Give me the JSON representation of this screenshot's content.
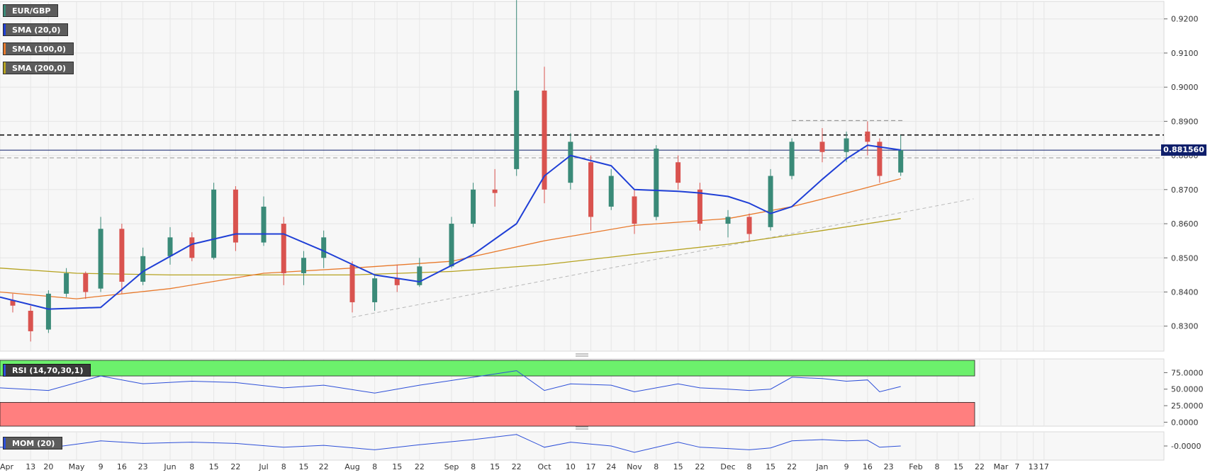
{
  "legend": {
    "symbol": "EUR/GBP",
    "sma20": "SMA (20,0)",
    "sma100": "SMA (100,0)",
    "sma200": "SMA (200,0)",
    "rsi": "RSI (14,70,30,1)",
    "mom": "MOM (20)"
  },
  "colors": {
    "up": "#3a8a78",
    "down": "#d9534f",
    "sma20": "#1f3fd6",
    "sma100": "#e8792b",
    "sma200": "#b5a21f",
    "rsi_line": "#2d4fd8",
    "rsi_overbought": "#6cf06c",
    "rsi_oversold": "#ff7f7f",
    "current_price": "#0f1f6b"
  },
  "chart_data": {
    "type": "candlestick",
    "instrument": "EUR/GBP",
    "y_range": [
      0.825,
      0.9255
    ],
    "price_ticks": [
      "0.9200",
      "0.9100",
      "0.9000",
      "0.8900",
      "0.8800",
      "0.8700",
      "0.8600",
      "0.8500",
      "0.8400",
      "0.8300"
    ],
    "current_price": "0.881560",
    "x_ticks": [
      "Apr",
      "13",
      "20",
      "May",
      "9",
      "16",
      "23",
      "Jun",
      "8",
      "15",
      "22",
      "Jul",
      "8",
      "15",
      "22",
      "Aug",
      "8",
      "15",
      "22",
      "Sep",
      "8",
      "15",
      "22",
      "Oct",
      "10",
      "17",
      "24",
      "Nov",
      "8",
      "15",
      "22",
      "Dec",
      "8",
      "15",
      "22",
      "Jan",
      "9",
      "16",
      "23",
      "Feb",
      "8",
      "15",
      "22",
      "Mar",
      "7",
      "13",
      "17"
    ],
    "horizontal_levels": [
      {
        "price": 0.886,
        "style": "dashed",
        "color": "#111111"
      },
      {
        "price": 0.8793,
        "style": "dashed",
        "color": "#aaaaaa"
      },
      {
        "price": 0.8902,
        "style": "dashed",
        "color": "#999999",
        "from": "Dec 22",
        "to": "Jan 28"
      }
    ],
    "trendline": {
      "start": {
        "date": "Aug 1",
        "price": 0.8326
      },
      "end": {
        "date": "Feb 20",
        "price": 0.8673
      }
    },
    "candles_sampled": [
      {
        "date": "Apr 6",
        "o": 0.8375,
        "h": 0.8395,
        "l": 0.834,
        "c": 0.836
      },
      {
        "date": "Apr 13",
        "o": 0.8345,
        "h": 0.836,
        "l": 0.8255,
        "c": 0.8285
      },
      {
        "date": "Apr 20",
        "o": 0.829,
        "h": 0.8405,
        "l": 0.828,
        "c": 0.8395
      },
      {
        "date": "Apr 27",
        "o": 0.8395,
        "h": 0.847,
        "l": 0.8385,
        "c": 0.8455
      },
      {
        "date": "May 4",
        "o": 0.8455,
        "h": 0.846,
        "l": 0.838,
        "c": 0.84
      },
      {
        "date": "May 9",
        "o": 0.841,
        "h": 0.862,
        "l": 0.84,
        "c": 0.8585
      },
      {
        "date": "May 16",
        "o": 0.8585,
        "h": 0.86,
        "l": 0.8395,
        "c": 0.843
      },
      {
        "date": "May 23",
        "o": 0.843,
        "h": 0.853,
        "l": 0.842,
        "c": 0.8505
      },
      {
        "date": "Jun 1",
        "o": 0.8505,
        "h": 0.859,
        "l": 0.848,
        "c": 0.856
      },
      {
        "date": "Jun 8",
        "o": 0.856,
        "h": 0.8575,
        "l": 0.849,
        "c": 0.85
      },
      {
        "date": "Jun 15",
        "o": 0.85,
        "h": 0.872,
        "l": 0.8495,
        "c": 0.87
      },
      {
        "date": "Jun 22",
        "o": 0.87,
        "h": 0.871,
        "l": 0.852,
        "c": 0.8545
      },
      {
        "date": "Jul 1",
        "o": 0.8545,
        "h": 0.868,
        "l": 0.8535,
        "c": 0.865
      },
      {
        "date": "Jul 8",
        "o": 0.86,
        "h": 0.862,
        "l": 0.842,
        "c": 0.8455
      },
      {
        "date": "Jul 15",
        "o": 0.8455,
        "h": 0.852,
        "l": 0.842,
        "c": 0.85
      },
      {
        "date": "Jul 22",
        "o": 0.85,
        "h": 0.858,
        "l": 0.847,
        "c": 0.856
      },
      {
        "date": "Aug 1",
        "o": 0.848,
        "h": 0.849,
        "l": 0.834,
        "c": 0.837
      },
      {
        "date": "Aug 8",
        "o": 0.837,
        "h": 0.845,
        "l": 0.8345,
        "c": 0.844
      },
      {
        "date": "Aug 15",
        "o": 0.844,
        "h": 0.848,
        "l": 0.84,
        "c": 0.842
      },
      {
        "date": "Aug 22",
        "o": 0.842,
        "h": 0.85,
        "l": 0.8415,
        "c": 0.8475
      },
      {
        "date": "Sep 1",
        "o": 0.8475,
        "h": 0.862,
        "l": 0.847,
        "c": 0.86
      },
      {
        "date": "Sep 8",
        "o": 0.86,
        "h": 0.872,
        "l": 0.859,
        "c": 0.87
      },
      {
        "date": "Sep 15",
        "o": 0.87,
        "h": 0.876,
        "l": 0.865,
        "c": 0.869
      },
      {
        "date": "Sep 22",
        "o": 0.876,
        "h": 0.9255,
        "l": 0.874,
        "c": 0.899
      },
      {
        "date": "Oct 1",
        "o": 0.899,
        "h": 0.906,
        "l": 0.866,
        "c": 0.87
      },
      {
        "date": "Oct 10",
        "o": 0.872,
        "h": 0.8865,
        "l": 0.87,
        "c": 0.884
      },
      {
        "date": "Oct 17",
        "o": 0.878,
        "h": 0.88,
        "l": 0.858,
        "c": 0.862
      },
      {
        "date": "Oct 24",
        "o": 0.865,
        "h": 0.876,
        "l": 0.864,
        "c": 0.874
      },
      {
        "date": "Nov 1",
        "o": 0.868,
        "h": 0.87,
        "l": 0.857,
        "c": 0.86
      },
      {
        "date": "Nov 8",
        "o": 0.862,
        "h": 0.883,
        "l": 0.861,
        "c": 0.882
      },
      {
        "date": "Nov 15",
        "o": 0.878,
        "h": 0.88,
        "l": 0.87,
        "c": 0.872
      },
      {
        "date": "Nov 22",
        "o": 0.87,
        "h": 0.872,
        "l": 0.858,
        "c": 0.86
      },
      {
        "date": "Dec 1",
        "o": 0.86,
        "h": 0.864,
        "l": 0.856,
        "c": 0.862
      },
      {
        "date": "Dec 8",
        "o": 0.862,
        "h": 0.863,
        "l": 0.855,
        "c": 0.857
      },
      {
        "date": "Dec 15",
        "o": 0.859,
        "h": 0.876,
        "l": 0.858,
        "c": 0.874
      },
      {
        "date": "Dec 22",
        "o": 0.874,
        "h": 0.885,
        "l": 0.873,
        "c": 0.884
      },
      {
        "date": "Jan 1",
        "o": 0.884,
        "h": 0.888,
        "l": 0.878,
        "c": 0.881
      },
      {
        "date": "Jan 9",
        "o": 0.881,
        "h": 0.887,
        "l": 0.878,
        "c": 0.885
      },
      {
        "date": "Jan 16",
        "o": 0.887,
        "h": 0.89,
        "l": 0.88,
        "c": 0.884
      },
      {
        "date": "Jan 20",
        "o": 0.884,
        "h": 0.885,
        "l": 0.872,
        "c": 0.874
      },
      {
        "date": "Jan 27",
        "o": 0.875,
        "h": 0.886,
        "l": 0.874,
        "c": 0.8816
      }
    ],
    "sma20": [
      {
        "date": "Apr 1",
        "v": 0.8385
      },
      {
        "date": "Apr 20",
        "v": 0.835
      },
      {
        "date": "May 9",
        "v": 0.8355
      },
      {
        "date": "May 23",
        "v": 0.846
      },
      {
        "date": "Jun 8",
        "v": 0.854
      },
      {
        "date": "Jun 22",
        "v": 0.857
      },
      {
        "date": "Jul 8",
        "v": 0.857
      },
      {
        "date": "Jul 22",
        "v": 0.852
      },
      {
        "date": "Aug 8",
        "v": 0.845
      },
      {
        "date": "Aug 22",
        "v": 0.843
      },
      {
        "date": "Sep 8",
        "v": 0.851
      },
      {
        "date": "Sep 22",
        "v": 0.86
      },
      {
        "date": "Oct 1",
        "v": 0.874
      },
      {
        "date": "Oct 10",
        "v": 0.88
      },
      {
        "date": "Oct 24",
        "v": 0.877
      },
      {
        "date": "Nov 1",
        "v": 0.87
      },
      {
        "date": "Nov 15",
        "v": 0.8695
      },
      {
        "date": "Nov 22",
        "v": 0.869
      },
      {
        "date": "Dec 1",
        "v": 0.868
      },
      {
        "date": "Dec 8",
        "v": 0.866
      },
      {
        "date": "Dec 15",
        "v": 0.863
      },
      {
        "date": "Dec 22",
        "v": 0.865
      },
      {
        "date": "Jan 1",
        "v": 0.873
      },
      {
        "date": "Jan 9",
        "v": 0.879
      },
      {
        "date": "Jan 16",
        "v": 0.883
      },
      {
        "date": "Jan 27",
        "v": 0.8816
      }
    ],
    "sma100": [
      {
        "date": "Apr 1",
        "v": 0.84
      },
      {
        "date": "May 1",
        "v": 0.838
      },
      {
        "date": "Jun 1",
        "v": 0.841
      },
      {
        "date": "Jul 1",
        "v": 0.8455
      },
      {
        "date": "Aug 1",
        "v": 0.847
      },
      {
        "date": "Sep 1",
        "v": 0.849
      },
      {
        "date": "Oct 1",
        "v": 0.855
      },
      {
        "date": "Nov 1",
        "v": 0.8595
      },
      {
        "date": "Dec 1",
        "v": 0.8615
      },
      {
        "date": "Dec 22",
        "v": 0.865
      },
      {
        "date": "Jan 9",
        "v": 0.869
      },
      {
        "date": "Jan 27",
        "v": 0.8732
      }
    ],
    "sma200": [
      {
        "date": "Apr 1",
        "v": 0.847
      },
      {
        "date": "May 1",
        "v": 0.8455
      },
      {
        "date": "Jun 1",
        "v": 0.845
      },
      {
        "date": "Jul 1",
        "v": 0.845
      },
      {
        "date": "Aug 1",
        "v": 0.845
      },
      {
        "date": "Sep 1",
        "v": 0.846
      },
      {
        "date": "Oct 1",
        "v": 0.848
      },
      {
        "date": "Nov 1",
        "v": 0.851
      },
      {
        "date": "Dec 1",
        "v": 0.854
      },
      {
        "date": "Jan 1",
        "v": 0.858
      },
      {
        "date": "Jan 27",
        "v": 0.8615
      }
    ],
    "rsi": {
      "ticks": [
        "75.0000",
        "50.0000",
        "25.0000",
        "0.0000"
      ],
      "overbought": 70,
      "oversold": 30,
      "values": [
        {
          "date": "Apr 1",
          "v": 52
        },
        {
          "date": "Apr 20",
          "v": 48
        },
        {
          "date": "May 9",
          "v": 70
        },
        {
          "date": "May 23",
          "v": 58
        },
        {
          "date": "Jun 8",
          "v": 62
        },
        {
          "date": "Jun 22",
          "v": 60
        },
        {
          "date": "Jul 8",
          "v": 52
        },
        {
          "date": "Jul 22",
          "v": 56
        },
        {
          "date": "Aug 8",
          "v": 44
        },
        {
          "date": "Aug 22",
          "v": 56
        },
        {
          "date": "Sep 8",
          "v": 68
        },
        {
          "date": "Sep 22",
          "v": 78
        },
        {
          "date": "Oct 1",
          "v": 48
        },
        {
          "date": "Oct 10",
          "v": 58
        },
        {
          "date": "Oct 24",
          "v": 56
        },
        {
          "date": "Nov 1",
          "v": 46
        },
        {
          "date": "Nov 15",
          "v": 58
        },
        {
          "date": "Nov 22",
          "v": 52
        },
        {
          "date": "Dec 1",
          "v": 50
        },
        {
          "date": "Dec 8",
          "v": 48
        },
        {
          "date": "Dec 15",
          "v": 50
        },
        {
          "date": "Dec 22",
          "v": 68
        },
        {
          "date": "Jan 1",
          "v": 66
        },
        {
          "date": "Jan 9",
          "v": 62
        },
        {
          "date": "Jan 16",
          "v": 64
        },
        {
          "date": "Jan 20",
          "v": 46
        },
        {
          "date": "Jan 27",
          "v": 54
        }
      ]
    },
    "mom": {
      "tick": "-0.0000",
      "values": [
        {
          "date": "Apr 1",
          "v": -0.002
        },
        {
          "date": "Apr 20",
          "v": -0.003
        },
        {
          "date": "May 9",
          "v": 0.008
        },
        {
          "date": "May 23",
          "v": 0.004
        },
        {
          "date": "Jun 8",
          "v": 0.006
        },
        {
          "date": "Jun 22",
          "v": 0.004
        },
        {
          "date": "Jul 8",
          "v": -0.002
        },
        {
          "date": "Jul 22",
          "v": 0.001
        },
        {
          "date": "Aug 8",
          "v": -0.006
        },
        {
          "date": "Aug 22",
          "v": 0.002
        },
        {
          "date": "Sep 8",
          "v": 0.01
        },
        {
          "date": "Sep 22",
          "v": 0.018
        },
        {
          "date": "Oct 1",
          "v": -0.002
        },
        {
          "date": "Oct 10",
          "v": 0.006
        },
        {
          "date": "Oct 24",
          "v": 0.0
        },
        {
          "date": "Nov 1",
          "v": -0.01
        },
        {
          "date": "Nov 15",
          "v": 0.006
        },
        {
          "date": "Nov 22",
          "v": -0.002
        },
        {
          "date": "Dec 1",
          "v": -0.004
        },
        {
          "date": "Dec 8",
          "v": -0.006
        },
        {
          "date": "Dec 15",
          "v": -0.003
        },
        {
          "date": "Dec 22",
          "v": 0.008
        },
        {
          "date": "Jan 1",
          "v": 0.01
        },
        {
          "date": "Jan 9",
          "v": 0.008
        },
        {
          "date": "Jan 16",
          "v": 0.009
        },
        {
          "date": "Jan 20",
          "v": -0.002
        },
        {
          "date": "Jan 27",
          "v": 0.0
        }
      ]
    }
  }
}
